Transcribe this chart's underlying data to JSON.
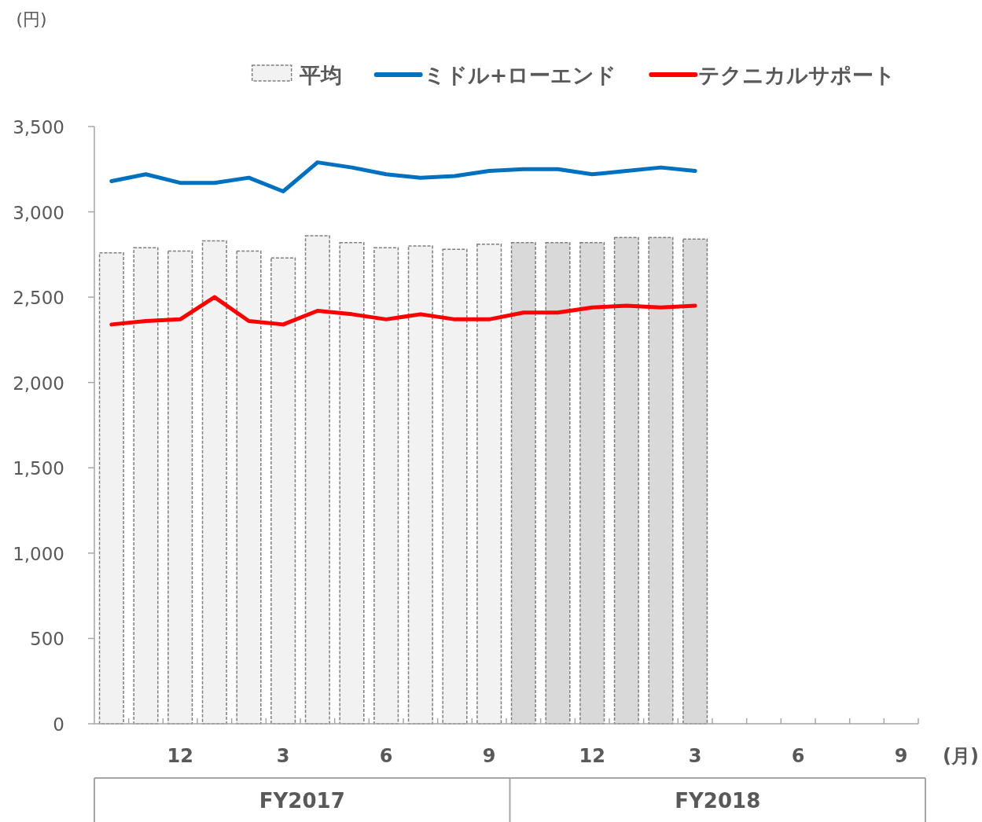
{
  "chart_data": {
    "type": "bar",
    "xlabel": "(月)",
    "legend": "top",
    "grid": false,
    "categories": [
      null,
      null,
      "12",
      null,
      null,
      "3",
      null,
      null,
      "6",
      null,
      null,
      "9",
      null,
      null,
      "12",
      null,
      null,
      "3",
      null,
      null,
      "6",
      null,
      null,
      "9"
    ],
    "ylim": [
      0,
      3500
    ],
    "yticks": [
      0,
      500,
      {
        "value": 1000,
        "label": "1,000"
      },
      {
        "value": 1500,
        "label": "1,500"
      },
      {
        "value": 2000,
        "label": "2,000"
      },
      {
        "value": 2500,
        "label": "2,500"
      },
      {
        "value": 3000,
        "label": "3,000"
      },
      {
        "value": 3500,
        "label": "3,500"
      }
    ],
    "series": [
      {
        "name": "平均",
        "color": "#f2f2f2",
        "colors": [
          "#f2f2f2",
          "#f2f2f2",
          "#f2f2f2",
          "#f2f2f2",
          "#f2f2f2",
          "#f2f2f2",
          "#f2f2f2",
          "#f2f2f2",
          "#f2f2f2",
          "#f2f2f2",
          "#f2f2f2",
          "#f2f2f2",
          "#d9d9d9",
          "#d9d9d9",
          "#d9d9d9",
          "#d9d9d9",
          "#d9d9d9",
          "#d9d9d9",
          null,
          null,
          null,
          null,
          null,
          null
        ],
        "values": [
          2760,
          2790,
          2770,
          2830,
          2770,
          2730,
          2860,
          2820,
          2790,
          2800,
          2780,
          2810,
          2820,
          2820,
          2820,
          2850,
          2850,
          2840,
          null,
          null,
          null,
          null,
          null,
          null
        ]
      },
      {
        "name": "ミドル+ローエンド",
        "type": "line",
        "color": "#0070c0",
        "values": [
          3180,
          3220,
          3170,
          3170,
          3200,
          3120,
          3290,
          3260,
          3220,
          3200,
          3210,
          3240,
          3250,
          3250,
          3220,
          3240,
          3260,
          3240,
          null,
          null,
          null,
          null,
          null,
          null
        ]
      },
      {
        "name": "テクニカルサポート",
        "type": "line",
        "color": "#ff0000",
        "values": [
          2340,
          2360,
          2370,
          2500,
          2360,
          2340,
          2420,
          2400,
          2370,
          2400,
          2370,
          2370,
          2410,
          2410,
          2440,
          2450,
          2440,
          2450,
          null,
          null,
          null,
          null,
          null,
          null
        ]
      }
    ],
    "annotations": [
      "(円)",
      "FY2017",
      "FY2018"
    ]
  }
}
